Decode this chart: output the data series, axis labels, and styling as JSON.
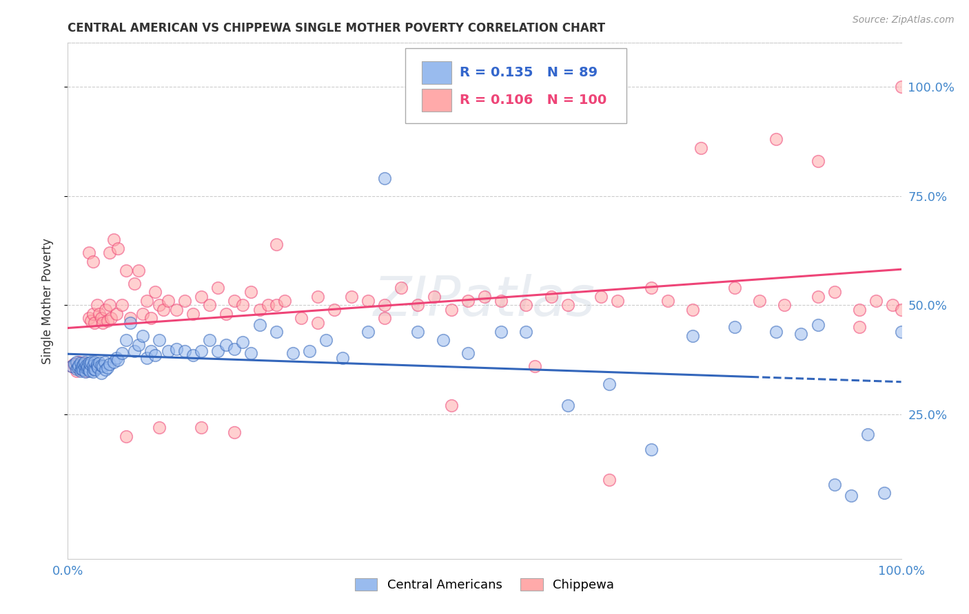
{
  "title": "CENTRAL AMERICAN VS CHIPPEWA SINGLE MOTHER POVERTY CORRELATION CHART",
  "source": "Source: ZipAtlas.com",
  "ylabel": "Single Mother Poverty",
  "ytick_values": [
    0.25,
    0.5,
    0.75,
    1.0
  ],
  "ytick_labels": [
    "25.0%",
    "50.0%",
    "75.0%",
    "100.0%"
  ],
  "xlim": [
    0.0,
    1.0
  ],
  "ylim": [
    -0.08,
    1.1
  ],
  "legend_blue_r": "0.135",
  "legend_blue_n": "89",
  "legend_pink_r": "0.106",
  "legend_pink_n": "100",
  "legend_label_blue": "Central Americans",
  "legend_label_pink": "Chippewa",
  "color_blue": "#99BBEE",
  "color_pink": "#FFAAAA",
  "watermark": "ZIPatlas",
  "blue_line_color": "#3366BB",
  "pink_line_color": "#EE4477",
  "blue_x": [
    0.005,
    0.008,
    0.01,
    0.01,
    0.012,
    0.013,
    0.015,
    0.015,
    0.016,
    0.017,
    0.018,
    0.019,
    0.02,
    0.02,
    0.021,
    0.022,
    0.023,
    0.024,
    0.025,
    0.025,
    0.026,
    0.027,
    0.028,
    0.03,
    0.03,
    0.031,
    0.032,
    0.033,
    0.035,
    0.035,
    0.036,
    0.038,
    0.04,
    0.04,
    0.042,
    0.044,
    0.045,
    0.048,
    0.05,
    0.055,
    0.058,
    0.06,
    0.065,
    0.07,
    0.075,
    0.08,
    0.085,
    0.09,
    0.095,
    0.1,
    0.105,
    0.11,
    0.12,
    0.13,
    0.14,
    0.15,
    0.16,
    0.17,
    0.18,
    0.19,
    0.2,
    0.21,
    0.22,
    0.23,
    0.25,
    0.27,
    0.29,
    0.31,
    0.33,
    0.36,
    0.38,
    0.42,
    0.45,
    0.48,
    0.52,
    0.55,
    0.6,
    0.65,
    0.7,
    0.75,
    0.8,
    0.85,
    0.88,
    0.9,
    0.92,
    0.94,
    0.96,
    0.98,
    1.0
  ],
  "blue_y": [
    0.36,
    0.365,
    0.355,
    0.37,
    0.358,
    0.362,
    0.35,
    0.368,
    0.355,
    0.36,
    0.352,
    0.365,
    0.358,
    0.37,
    0.348,
    0.362,
    0.356,
    0.36,
    0.353,
    0.368,
    0.35,
    0.365,
    0.37,
    0.348,
    0.362,
    0.355,
    0.37,
    0.352,
    0.36,
    0.365,
    0.358,
    0.368,
    0.345,
    0.362,
    0.36,
    0.37,
    0.352,
    0.358,
    0.365,
    0.37,
    0.38,
    0.375,
    0.39,
    0.42,
    0.46,
    0.395,
    0.41,
    0.43,
    0.38,
    0.395,
    0.385,
    0.42,
    0.395,
    0.4,
    0.395,
    0.385,
    0.395,
    0.42,
    0.395,
    0.41,
    0.4,
    0.415,
    0.39,
    0.455,
    0.44,
    0.39,
    0.395,
    0.42,
    0.38,
    0.44,
    0.79,
    0.44,
    0.42,
    0.39,
    0.44,
    0.44,
    0.27,
    0.32,
    0.17,
    0.43,
    0.45,
    0.44,
    0.435,
    0.455,
    0.09,
    0.065,
    0.205,
    0.07,
    0.44
  ],
  "pink_x": [
    0.005,
    0.007,
    0.01,
    0.012,
    0.013,
    0.014,
    0.015,
    0.016,
    0.018,
    0.02,
    0.022,
    0.025,
    0.025,
    0.028,
    0.03,
    0.03,
    0.032,
    0.035,
    0.038,
    0.04,
    0.042,
    0.045,
    0.048,
    0.05,
    0.05,
    0.052,
    0.055,
    0.058,
    0.06,
    0.065,
    0.07,
    0.075,
    0.08,
    0.085,
    0.09,
    0.095,
    0.1,
    0.105,
    0.11,
    0.115,
    0.12,
    0.13,
    0.14,
    0.15,
    0.16,
    0.17,
    0.18,
    0.19,
    0.2,
    0.21,
    0.22,
    0.23,
    0.24,
    0.25,
    0.26,
    0.28,
    0.3,
    0.32,
    0.34,
    0.36,
    0.38,
    0.4,
    0.42,
    0.44,
    0.46,
    0.48,
    0.5,
    0.52,
    0.55,
    0.58,
    0.6,
    0.64,
    0.66,
    0.7,
    0.72,
    0.75,
    0.8,
    0.83,
    0.86,
    0.9,
    0.92,
    0.95,
    0.97,
    0.99,
    1.0,
    0.07,
    0.11,
    0.16,
    0.2,
    0.25,
    0.3,
    0.38,
    0.46,
    0.56,
    0.65,
    0.76,
    0.85,
    0.9,
    0.95,
    1.0
  ],
  "pink_y": [
    0.36,
    0.365,
    0.35,
    0.36,
    0.37,
    0.355,
    0.362,
    0.358,
    0.368,
    0.36,
    0.35,
    0.47,
    0.62,
    0.465,
    0.48,
    0.6,
    0.46,
    0.5,
    0.48,
    0.47,
    0.46,
    0.49,
    0.465,
    0.5,
    0.62,
    0.47,
    0.65,
    0.48,
    0.63,
    0.5,
    0.58,
    0.47,
    0.55,
    0.58,
    0.48,
    0.51,
    0.47,
    0.53,
    0.5,
    0.49,
    0.51,
    0.49,
    0.51,
    0.48,
    0.52,
    0.5,
    0.54,
    0.48,
    0.51,
    0.5,
    0.53,
    0.49,
    0.5,
    0.5,
    0.51,
    0.47,
    0.52,
    0.49,
    0.52,
    0.51,
    0.5,
    0.54,
    0.5,
    0.52,
    0.49,
    0.51,
    0.52,
    0.51,
    0.5,
    0.52,
    0.5,
    0.52,
    0.51,
    0.54,
    0.51,
    0.49,
    0.54,
    0.51,
    0.5,
    0.52,
    0.53,
    0.49,
    0.51,
    0.5,
    1.0,
    0.2,
    0.22,
    0.22,
    0.21,
    0.64,
    0.46,
    0.47,
    0.27,
    0.36,
    0.1,
    0.86,
    0.88,
    0.83,
    0.45,
    0.49
  ]
}
